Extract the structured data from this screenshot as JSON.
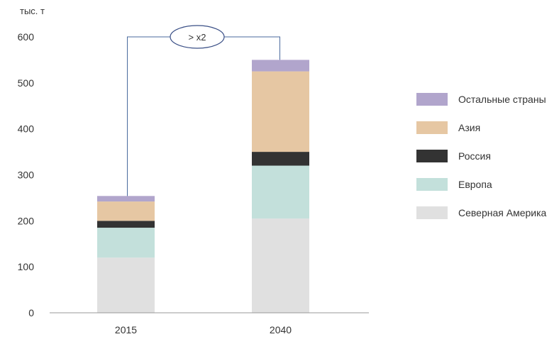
{
  "chart_data": {
    "type": "bar",
    "stacked": true,
    "y_unit_label": "тыс. т",
    "categories": [
      "2015",
      "2040"
    ],
    "series": [
      {
        "name": "Северная Америка",
        "color": "#e0e0e0",
        "values": [
          120,
          205
        ]
      },
      {
        "name": "Европа",
        "color": "#c3e0db",
        "values": [
          65,
          115
        ]
      },
      {
        "name": "Россия",
        "color": "#333333",
        "values": [
          15,
          30
        ]
      },
      {
        "name": "Азия",
        "color": "#e6c7a3",
        "values": [
          42,
          175
        ]
      },
      {
        "name": "Остальные страны",
        "color": "#b1a5cc",
        "values": [
          12,
          25
        ]
      }
    ],
    "yticks": [
      0,
      100,
      200,
      300,
      400,
      500,
      600
    ],
    "ylim": [
      0,
      600
    ],
    "legend_position": "right",
    "grid": false,
    "annotation": {
      "text": "> x2",
      "from": "2015",
      "to": "2040"
    }
  }
}
